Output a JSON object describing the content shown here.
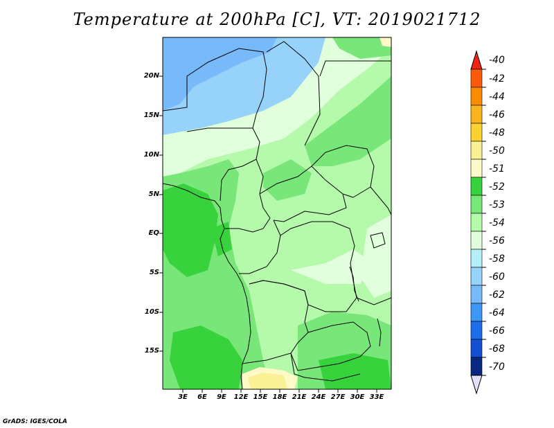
{
  "title": "Temperature at 200hPa [C], VT: 2019021712",
  "credit": "GrADS: IGES/COLA",
  "lat_labels": [
    "20N",
    "15N",
    "10N",
    "5N",
    "EQ",
    "5S",
    "10S",
    "15S"
  ],
  "lon_labels": [
    "3E",
    "6E",
    "9E",
    "12E",
    "15E",
    "18E",
    "21E",
    "24E",
    "27E",
    "30E",
    "33E"
  ],
  "colorbar": {
    "labels": [
      "-40",
      "-42",
      "-44",
      "-46",
      "-48",
      "-50",
      "-51",
      "-52",
      "-53",
      "-54",
      "-56",
      "-58",
      "-60",
      "-62",
      "-64",
      "-66",
      "-68",
      "-70"
    ],
    "colors": [
      "#f0240f",
      "#fa5a0a",
      "#fa8c00",
      "#fab41e",
      "#fad232",
      "#faf096",
      "#fffac8",
      "#37d23c",
      "#78e678",
      "#b4faaa",
      "#e1ffdc",
      "#b4f0fa",
      "#96d2fa",
      "#78b9fa",
      "#3c96f5",
      "#1e6eeb",
      "#1450d2",
      "#0a2882",
      "#e1e1fa"
    ]
  },
  "legend_levels": [
    "-54",
    "-53",
    "-52",
    "-51",
    "-50",
    "-56"
  ],
  "regions": {
    "background": "#b4faaa",
    "north_cold_56": "#96d2fa",
    "north_cold_58": "#78b9fa",
    "pale_54": "#e1ffdc",
    "green_53": "#78e678",
    "green_52": "#37d23c",
    "yellow_51": "#fffac8",
    "yellow_50": "#faf096",
    "borders": "#000000"
  }
}
